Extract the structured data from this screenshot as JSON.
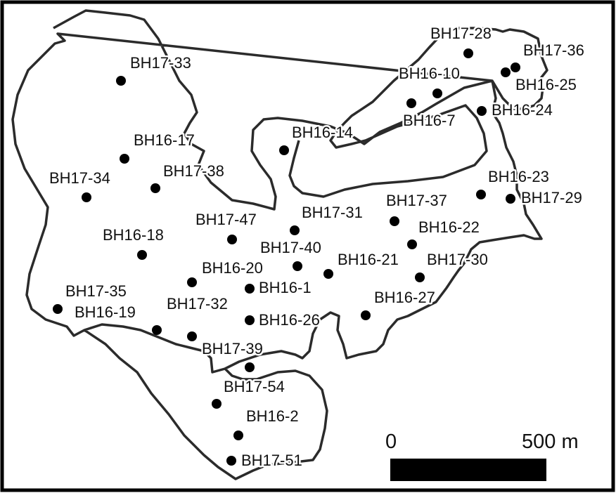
{
  "boreholes": [
    {
      "id": "BH17-33"
    },
    {
      "id": "BH16-17"
    },
    {
      "id": "BH17-34"
    },
    {
      "id": "BH17-38"
    },
    {
      "id": "BH17-47"
    },
    {
      "id": "BH16-18"
    },
    {
      "id": "BH16-20"
    },
    {
      "id": "BH17-35"
    },
    {
      "id": "BH16-19"
    },
    {
      "id": "BH17-32"
    },
    {
      "id": "BH17-39"
    },
    {
      "id": "BH17-54"
    },
    {
      "id": "BH16-2"
    },
    {
      "id": "BH17-51"
    },
    {
      "id": "BH16-1"
    },
    {
      "id": "BH16-26"
    },
    {
      "id": "BH17-40"
    },
    {
      "id": "BH17-31"
    },
    {
      "id": "BH16-21"
    },
    {
      "id": "BH16-14"
    },
    {
      "id": "BH17-37"
    },
    {
      "id": "BH16-22"
    },
    {
      "id": "BH17-30"
    },
    {
      "id": "BH16-27"
    },
    {
      "id": "BH16-10"
    },
    {
      "id": "BH16-7"
    },
    {
      "id": "BH17-28"
    },
    {
      "id": "BH17-36"
    },
    {
      "id": "BH16-25"
    },
    {
      "id": "BH16-24"
    },
    {
      "id": "BH16-23"
    },
    {
      "id": "BH17-29"
    }
  ],
  "scale_bar": {
    "start_label": "0",
    "end_label": "500 m",
    "length_m": 500
  }
}
